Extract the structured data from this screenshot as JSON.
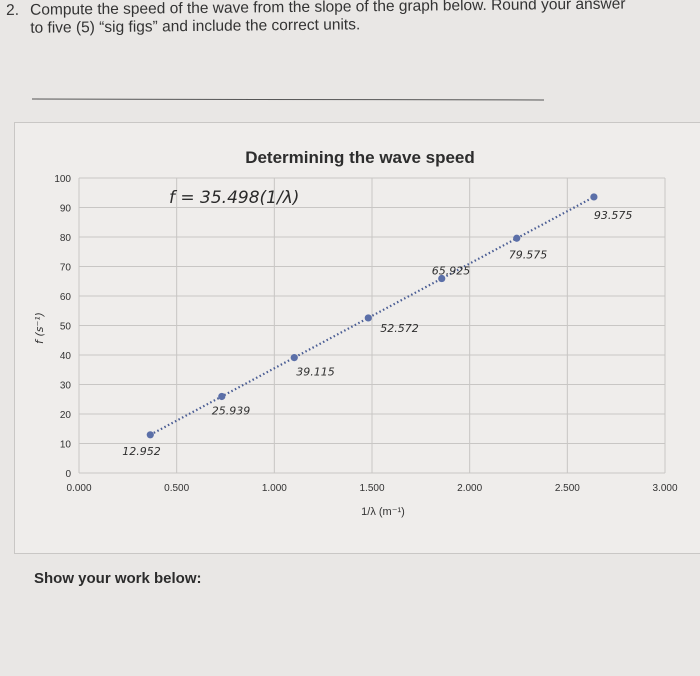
{
  "question": {
    "number": "2.",
    "line1": "Compute the speed of the wave from the slope of the graph below. Round your answer",
    "line2": "to five (5) “sig figs” and include the correct units."
  },
  "work_label": "Show your work below:",
  "chart_data": {
    "type": "scatter",
    "title": "Determining the wave speed",
    "xlabel": "1/λ (m⁻¹)",
    "ylabel": "f (s⁻¹)",
    "equation": "f = 35.498(1/λ)",
    "xlim": [
      0,
      3
    ],
    "ylim": [
      0,
      100
    ],
    "x_ticks": [
      "0.000",
      "0.500",
      "1.000",
      "1.500",
      "2.000",
      "2.500",
      "3.000"
    ],
    "y_ticks": [
      "0",
      "10",
      "20",
      "30",
      "40",
      "50",
      "60",
      "70",
      "80",
      "90",
      "100"
    ],
    "grid": true,
    "trendline": "dotted linear",
    "series": [
      {
        "color": "#5b6fa8",
        "points": [
          {
            "x": 0.365,
            "y": 12.952
          },
          {
            "x": 0.731,
            "y": 25.939
          },
          {
            "x": 1.102,
            "y": 39.115
          },
          {
            "x": 1.481,
            "y": 52.572
          },
          {
            "x": 1.857,
            "y": 65.925
          },
          {
            "x": 2.241,
            "y": 79.575
          },
          {
            "x": 2.636,
            "y": 93.575
          }
        ],
        "handwritten_labels": [
          "12.952",
          "25.939",
          "39.115",
          "52.572",
          "65.925",
          "79.575",
          "93.575"
        ]
      }
    ]
  }
}
